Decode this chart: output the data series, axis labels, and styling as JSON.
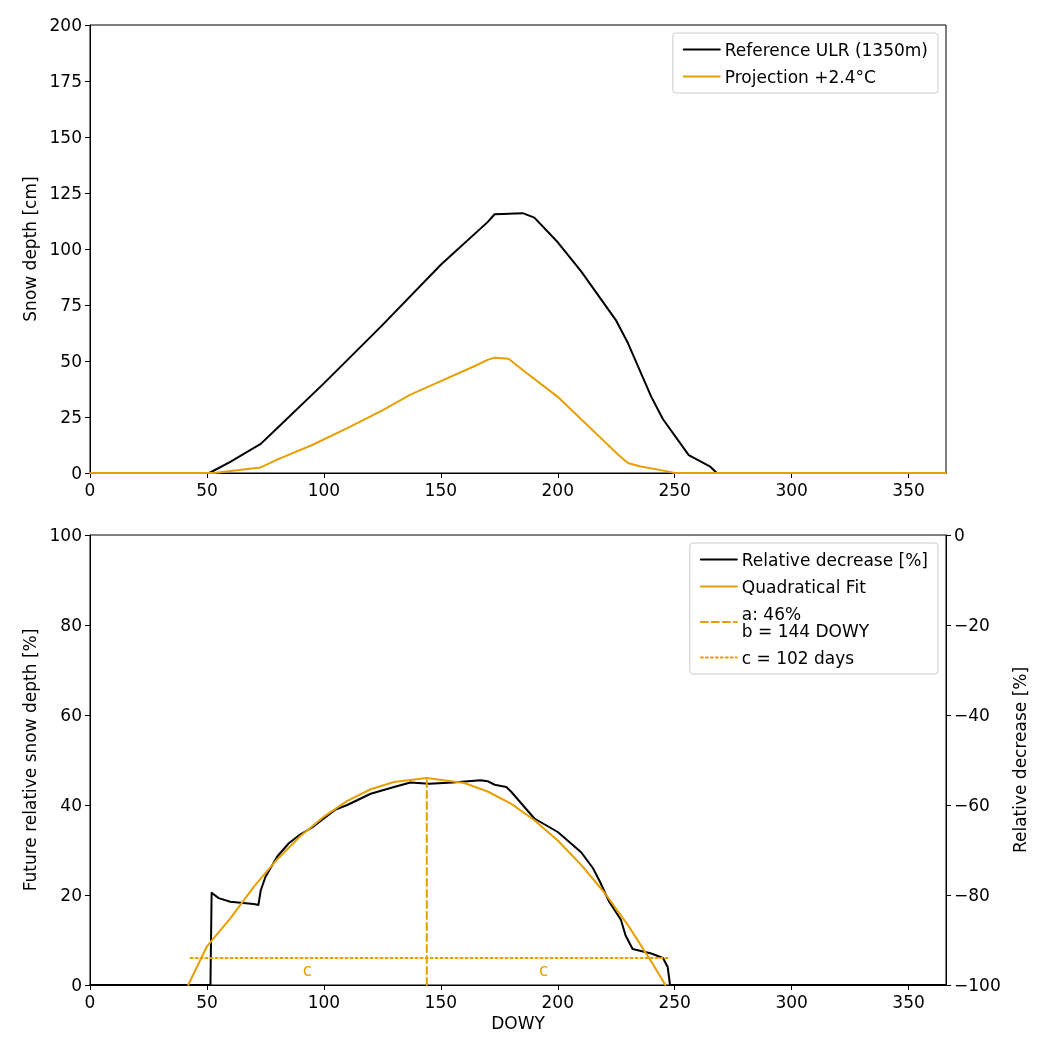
{
  "chart_data": [
    {
      "type": "line",
      "ylabel": "Snow depth [cm]",
      "xlim": [
        0,
        366
      ],
      "xticks": [
        0,
        50,
        100,
        150,
        200,
        250,
        300,
        350
      ],
      "ylim": [
        0,
        200
      ],
      "yticks": [
        0,
        25,
        50,
        75,
        100,
        125,
        150,
        175,
        200
      ],
      "grid": false,
      "legend": "top right",
      "marker": "none",
      "series": [
        {
          "name": "Reference ULR (1350m)",
          "color": "#000000",
          "line_style": "solid",
          "x": [
            0,
            51,
            60,
            73,
            80,
            100,
            125,
            150,
            170,
            173,
            185,
            190,
            200,
            210,
            225,
            230,
            240,
            245,
            256,
            265,
            267,
            268,
            366
          ],
          "values": [
            0,
            0,
            5,
            13,
            20,
            40,
            66,
            93,
            112,
            115.5,
            116,
            114,
            103,
            90,
            68,
            58,
            34,
            24,
            8,
            3,
            1,
            0,
            0
          ]
        },
        {
          "name": "Projection +2.4°C",
          "color": "#e69f00",
          "line_style": "solid",
          "x": [
            0,
            53,
            73,
            80,
            95,
            110,
            125,
            137,
            150,
            165,
            170,
            173,
            179,
            185,
            200,
            210,
            220,
            226,
            230,
            235,
            248,
            250,
            366
          ],
          "values": [
            0,
            0,
            2.5,
            6,
            12.5,
            20,
            28,
            35,
            41,
            48,
            50.5,
            51.5,
            51,
            46,
            34,
            24,
            14,
            8,
            4.5,
            3,
            0.5,
            0,
            0
          ]
        }
      ]
    },
    {
      "type": "line",
      "xlabel": "DOWY",
      "ylabel": "Future relative snow depth [%]",
      "y2label": "Relative decrease [%]",
      "xlim": [
        0,
        366
      ],
      "xticks": [
        0,
        50,
        100,
        150,
        200,
        250,
        300,
        350
      ],
      "ylim": [
        0,
        100
      ],
      "yticks": [
        0,
        20,
        40,
        60,
        80,
        100
      ],
      "y2lim": [
        -100,
        0
      ],
      "y2ticks": [
        {
          "value": -100,
          "label": "−100"
        },
        {
          "value": -80,
          "label": "−80"
        },
        {
          "value": -60,
          "label": "−60"
        },
        {
          "value": -40,
          "label": "−40"
        },
        {
          "value": -20,
          "label": "−20"
        },
        0
      ],
      "grid": false,
      "legend": "top right",
      "marker": "none",
      "series": [
        {
          "name": "Relative decrease [%]",
          "color": "#000000",
          "line_style": "solid",
          "x": [
            0,
            51.5,
            52,
            55,
            60,
            70,
            72,
            73,
            75,
            80,
            85,
            90,
            95,
            100,
            105,
            110,
            120,
            130,
            137,
            145,
            155,
            167,
            170,
            173,
            178,
            180,
            190,
            195,
            200,
            210,
            215,
            218,
            222,
            227,
            229,
            232,
            240,
            245,
            247,
            248,
            366
          ],
          "values": [
            0,
            0,
            20.5,
            19.3,
            18.5,
            18,
            17.8,
            21,
            24,
            28.5,
            31.5,
            33.5,
            35,
            37,
            39,
            40,
            42.5,
            44,
            45,
            44.7,
            45,
            45.5,
            45.3,
            44.5,
            44,
            43,
            37,
            35.5,
            34,
            29.5,
            26,
            23,
            18.5,
            14.5,
            11,
            8,
            7,
            6,
            4,
            0,
            0
          ]
        },
        {
          "name": "Quadratical Fit",
          "color": "#e69f00",
          "line_style": "solid",
          "x": [
            42,
            50,
            60,
            70,
            80,
            90,
            100,
            110,
            120,
            130,
            144,
            160,
            170,
            180,
            190,
            200,
            210,
            220,
            230,
            240,
            246
          ],
          "values": [
            0,
            8.6,
            14.8,
            21.8,
            27.9,
            33.1,
            37.4,
            40.9,
            43.5,
            45.1,
            46,
            44.9,
            43,
            40.3,
            36.6,
            32.1,
            26.7,
            20.5,
            13.3,
            5.2,
            0
          ]
        },
        {
          "name": "a: 46%\nb = 144 DOWY",
          "color": "#e69f00",
          "line_style": "dashed",
          "x": [
            144,
            144
          ],
          "values": [
            0,
            46
          ]
        },
        {
          "name": "c = 102 days",
          "color": "#e69f00",
          "line_style": "dotted",
          "x": [
            43,
            247
          ],
          "values": [
            6,
            6
          ]
        }
      ],
      "annotations": [
        {
          "text": "c",
          "x": 93,
          "y": 6
        },
        {
          "text": "c",
          "x": 194,
          "y": 6
        }
      ]
    }
  ]
}
